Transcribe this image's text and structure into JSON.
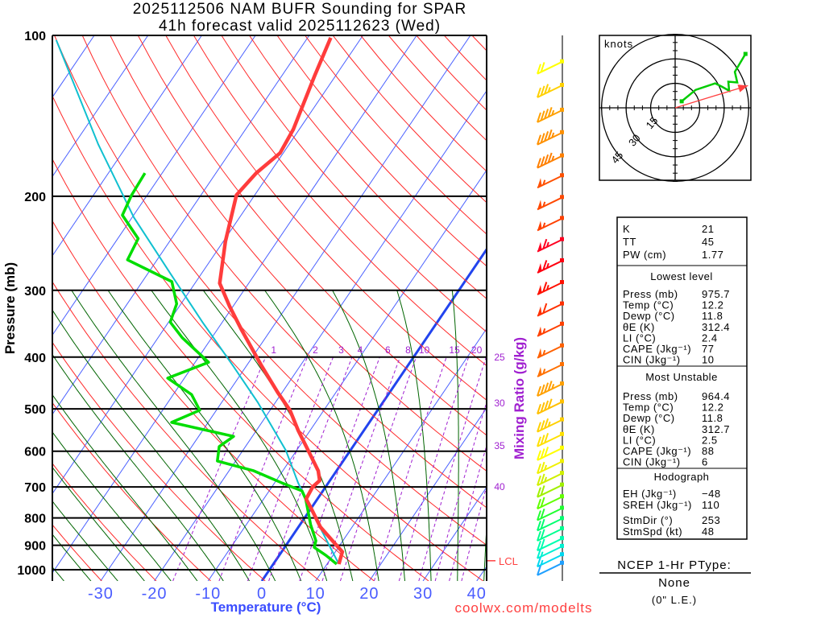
{
  "title": {
    "line1": "2025112506 NAM BUFR Sounding for SPAR",
    "line2": "41h forecast valid 2025112623 (Wed)"
  },
  "credit": "coolwx.com/modelts",
  "colors": {
    "isotherm": "#4a60ff",
    "zero_isotherm": "#2244ee",
    "dry_adiabat": "#ff2a2a",
    "moist_adiabat": "#006400",
    "mixing_ratio": "#a020d0",
    "temperature": "#ff3c3c",
    "dewpoint": "#00dd00",
    "parcel": "#10c0d0",
    "lcl": "#ff4040",
    "hodograph": "#00cc00",
    "storm_motion": "#ff4040"
  },
  "chart_data": {
    "type": "skew-t",
    "xlabel": "Temperature (°C)",
    "ylabel": "Pressure (mb)",
    "mixing_ratio_label": "Mixing Ratio (g/kg)",
    "pressure_ticks": [
      100,
      200,
      300,
      400,
      500,
      600,
      700,
      800,
      900,
      1000
    ],
    "temperature_ticks": [
      -30,
      -20,
      -10,
      0,
      10,
      20,
      30,
      40
    ],
    "pressure_range": [
      1050,
      100
    ],
    "mixing_ratio_lines": [
      1,
      2,
      3,
      4,
      6,
      8,
      10,
      15,
      20,
      25,
      30,
      35,
      40
    ],
    "temperature_profile": [
      [
        976,
        12.2
      ],
      [
        926,
        11.3
      ],
      [
        883,
        8.1
      ],
      [
        832,
        4.1
      ],
      [
        763,
        -0.3
      ],
      [
        737,
        -2.1
      ],
      [
        700,
        -2.4
      ],
      [
        681,
        -1.9
      ],
      [
        653,
        -3.4
      ],
      [
        588,
        -8.7
      ],
      [
        549,
        -12.2
      ],
      [
        503,
        -16.3
      ],
      [
        466,
        -20.8
      ],
      [
        416,
        -27.1
      ],
      [
        356,
        -35.4
      ],
      [
        321,
        -40.7
      ],
      [
        291,
        -45.4
      ],
      [
        243,
        -49.6
      ],
      [
        199,
        -53.4
      ],
      [
        181,
        -52.5
      ],
      [
        166,
        -50.6
      ],
      [
        150,
        -51.1
      ],
      [
        119,
        -53.9
      ],
      [
        101,
        -55.7
      ]
    ],
    "dewpoint_profile": [
      [
        976,
        11.8
      ],
      [
        940,
        8.7
      ],
      [
        908,
        5.5
      ],
      [
        883,
        5.0
      ],
      [
        824,
        2.0
      ],
      [
        737,
        -2.2
      ],
      [
        712,
        -3.9
      ],
      [
        688,
        -8.6
      ],
      [
        653,
        -15.4
      ],
      [
        626,
        -23.4
      ],
      [
        588,
        -24.9
      ],
      [
        563,
        -23.5
      ],
      [
        530,
        -36.8
      ],
      [
        503,
        -33.1
      ],
      [
        470,
        -36.6
      ],
      [
        438,
        -43.1
      ],
      [
        409,
        -37.5
      ],
      [
        368,
        -45.5
      ],
      [
        344,
        -49.7
      ],
      [
        318,
        -50.8
      ],
      [
        289,
        -54.5
      ],
      [
        263,
        -65.5
      ],
      [
        240,
        -66.2
      ],
      [
        217,
        -72.1
      ],
      [
        199,
        -72.9
      ],
      [
        181,
        -73.2
      ]
    ],
    "parcel_profile": [
      [
        976,
        12.2
      ],
      [
        847,
        4.9
      ],
      [
        688,
        -5.6
      ],
      [
        598,
        -12.0
      ],
      [
        486,
        -23.3
      ],
      [
        416,
        -32.4
      ],
      [
        344,
        -43.7
      ],
      [
        279,
        -55.8
      ],
      [
        219,
        -69.7
      ],
      [
        160,
        -85.5
      ],
      [
        102,
        -106.5
      ]
    ],
    "lcl": {
      "label": "LCL",
      "pressure": 962
    },
    "winds": [
      {
        "p": 112,
        "kt": 20,
        "color": "#ffff00"
      },
      {
        "p": 124,
        "kt": 35,
        "color": "#ffd000"
      },
      {
        "p": 138,
        "kt": 45,
        "color": "#ffa000"
      },
      {
        "p": 152,
        "kt": 45,
        "color": "#ff9000"
      },
      {
        "p": 168,
        "kt": 45,
        "color": "#ff8000"
      },
      {
        "p": 183,
        "kt": 55,
        "color": "#ff5000"
      },
      {
        "p": 201,
        "kt": 55,
        "color": "#ff4800"
      },
      {
        "p": 220,
        "kt": 55,
        "color": "#ff4000"
      },
      {
        "p": 241,
        "kt": 65,
        "color": "#ff0020"
      },
      {
        "p": 264,
        "kt": 65,
        "color": "#ff0010"
      },
      {
        "p": 290,
        "kt": 65,
        "color": "#ff1000"
      },
      {
        "p": 318,
        "kt": 60,
        "color": "#ff3000"
      },
      {
        "p": 347,
        "kt": 55,
        "color": "#ff4000"
      },
      {
        "p": 381,
        "kt": 55,
        "color": "#ff6000"
      },
      {
        "p": 413,
        "kt": 55,
        "color": "#ff7000"
      },
      {
        "p": 449,
        "kt": 45,
        "color": "#ffa000"
      },
      {
        "p": 485,
        "kt": 40,
        "color": "#ffc000"
      },
      {
        "p": 524,
        "kt": 35,
        "color": "#ffd000"
      },
      {
        "p": 558,
        "kt": 30,
        "color": "#ffe000"
      },
      {
        "p": 592,
        "kt": 30,
        "color": "#ffff00"
      },
      {
        "p": 627,
        "kt": 25,
        "color": "#f0f000"
      },
      {
        "p": 660,
        "kt": 25,
        "color": "#d0f000"
      },
      {
        "p": 694,
        "kt": 20,
        "color": "#a0f000"
      },
      {
        "p": 730,
        "kt": 20,
        "color": "#60ff00"
      },
      {
        "p": 767,
        "kt": 20,
        "color": "#20ff30"
      },
      {
        "p": 802,
        "kt": 20,
        "color": "#00ff70"
      },
      {
        "p": 838,
        "kt": 20,
        "color": "#00ff90"
      },
      {
        "p": 874,
        "kt": 20,
        "color": "#00ffb0"
      },
      {
        "p": 904,
        "kt": 15,
        "color": "#00f0d0"
      },
      {
        "p": 937,
        "kt": 15,
        "color": "#00d8f0"
      },
      {
        "p": 972,
        "kt": 10,
        "color": "#20a0ff"
      }
    ],
    "hodograph": {
      "units_label": "knots",
      "rings": [
        15,
        30,
        45
      ],
      "points": [
        [
          4,
          4
        ],
        [
          12.5,
          11
        ],
        [
          24.5,
          15
        ],
        [
          28.5,
          13
        ],
        [
          33,
          10.5
        ],
        [
          32.5,
          16
        ],
        [
          38,
          15.5
        ],
        [
          36.5,
          22
        ],
        [
          43,
          33
        ]
      ],
      "storm_motion": {
        "dir_deg": 253,
        "speed_kt": 48
      }
    }
  },
  "indices": {
    "top": [
      {
        "label": "K",
        "value": "21"
      },
      {
        "label": "TT",
        "value": "45"
      },
      {
        "label": "PW (cm)",
        "value": "1.77"
      }
    ],
    "lowest": {
      "title": "Lowest level",
      "rows": [
        {
          "label": "Press (mb)",
          "value": "975.7"
        },
        {
          "label": "Temp (°C)",
          "value": "12.2"
        },
        {
          "label": "Dewp (°C)",
          "value": "11.8"
        },
        {
          "label": "θE (K)",
          "value": "312.4"
        },
        {
          "label": "LI (°C)",
          "value": "2.4"
        },
        {
          "label": "CAPE (Jkg⁻¹)",
          "value": "77"
        },
        {
          "label": "CIN (Jkg⁻¹)",
          "value": "10"
        }
      ]
    },
    "unstable": {
      "title": "Most Unstable",
      "rows": [
        {
          "label": "Press (mb)",
          "value": "964.4"
        },
        {
          "label": "Temp (°C)",
          "value": "12.2"
        },
        {
          "label": "Dewp (°C)",
          "value": "11.8"
        },
        {
          "label": "θE (K)",
          "value": "312.7"
        },
        {
          "label": "LI (°C)",
          "value": "2.5"
        },
        {
          "label": "CAPE (Jkg⁻¹)",
          "value": "88"
        },
        {
          "label": "CIN (Jkg⁻¹)",
          "value": "6"
        }
      ]
    },
    "hodo": {
      "title": "Hodograph",
      "rows": [
        {
          "label": "EH (Jkg⁻¹)",
          "value": "−48"
        },
        {
          "label": "SREH (Jkg⁻¹)",
          "value": "110"
        },
        {
          "label": "StmDir (°)",
          "value": "253"
        },
        {
          "label": "StmSpd (kt)",
          "value": "48"
        }
      ]
    }
  },
  "ptype": {
    "title": "NCEP 1-Hr PType:",
    "value": "None",
    "accum": "(0\" L.E.)"
  }
}
